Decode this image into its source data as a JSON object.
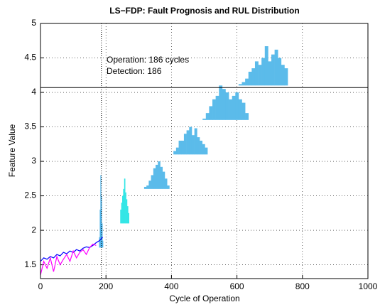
{
  "chart_data": {
    "type": "line",
    "title": "LS−FDP: Fault Prognosis and RUL Distribution",
    "xlabel": "Cycle of Operation",
    "ylabel": "Feature Value",
    "xlim": [
      0,
      1000
    ],
    "xticks": [
      0,
      200,
      400,
      600,
      800,
      1000
    ],
    "ylim": [
      1.3,
      5
    ],
    "yticks": [
      1.5,
      2,
      2.5,
      3,
      3.5,
      4,
      4.5,
      5
    ],
    "grid": true,
    "series": [
      {
        "color": "#0000ff",
        "x": [
          0,
          10,
          20,
          30,
          40,
          50,
          60,
          70,
          80,
          90,
          100,
          110,
          120,
          130,
          140,
          150,
          160,
          170,
          180,
          190
        ],
        "values": [
          1.55,
          1.6,
          1.58,
          1.62,
          1.6,
          1.65,
          1.63,
          1.68,
          1.66,
          1.7,
          1.68,
          1.72,
          1.7,
          1.74,
          1.76,
          1.75,
          1.78,
          1.82,
          1.85,
          1.9
        ]
      },
      {
        "color": "#ff00ff",
        "x": [
          0,
          10,
          20,
          30,
          40,
          50,
          60,
          70,
          80,
          90,
          100,
          110,
          120,
          130,
          140,
          150,
          160,
          170
        ],
        "values": [
          1.35,
          1.55,
          1.45,
          1.6,
          1.4,
          1.62,
          1.5,
          1.58,
          1.65,
          1.55,
          1.7,
          1.6,
          1.68,
          1.72,
          1.65,
          1.75,
          1.8,
          1.78
        ]
      }
    ],
    "distributions": [
      {
        "color": "#4fb3e8",
        "base": 1.75,
        "x": [
          180,
          182,
          184,
          186,
          188,
          190
        ],
        "values": [
          1.9,
          2.3,
          2.8,
          2.5,
          2.1,
          1.85
        ]
      },
      {
        "color": "#33e6e6",
        "base": 2.1,
        "x": [
          245,
          248,
          251,
          254,
          257,
          260,
          263,
          266,
          269
        ],
        "values": [
          2.3,
          2.4,
          2.5,
          2.6,
          2.75,
          2.55,
          2.45,
          2.35,
          2.25
        ]
      },
      {
        "color": "#5bbbea",
        "base": 2.6,
        "x": [
          320,
          327,
          334,
          341,
          348,
          355,
          362,
          369,
          376,
          383,
          390
        ],
        "values": [
          2.63,
          2.65,
          2.72,
          2.8,
          2.9,
          2.95,
          3.0,
          2.92,
          2.85,
          2.75,
          2.65
        ]
      },
      {
        "color": "#5bbbea",
        "base": 3.1,
        "x": [
          410,
          418,
          426,
          434,
          442,
          450,
          458,
          466,
          474,
          482,
          490,
          498,
          506
        ],
        "values": [
          3.15,
          3.2,
          3.3,
          3.3,
          3.4,
          3.45,
          3.5,
          3.38,
          3.48,
          3.35,
          3.3,
          3.25,
          3.2
        ]
      },
      {
        "color": "#5bbbea",
        "base": 3.6,
        "x": [
          500,
          510,
          520,
          530,
          540,
          550,
          560,
          570,
          580,
          590,
          600,
          610,
          620,
          630
        ],
        "values": [
          3.62,
          3.7,
          3.8,
          3.9,
          3.95,
          4.1,
          4.05,
          4.0,
          3.9,
          3.95,
          4.0,
          3.9,
          3.85,
          3.7
        ]
      },
      {
        "color": "#5bbbea",
        "base": 4.1,
        "x": [
          610,
          620,
          630,
          640,
          650,
          660,
          670,
          680,
          690,
          700,
          710,
          720,
          730,
          740,
          750
        ],
        "values": [
          4.12,
          4.15,
          4.2,
          4.3,
          4.35,
          4.45,
          4.4,
          4.5,
          4.67,
          4.45,
          4.55,
          4.62,
          4.5,
          4.4,
          4.35
        ]
      }
    ],
    "threshold": 4.07,
    "detection_x": 186,
    "annotations": [
      "Operation: 186 cycles",
      "Detection: 186"
    ]
  }
}
